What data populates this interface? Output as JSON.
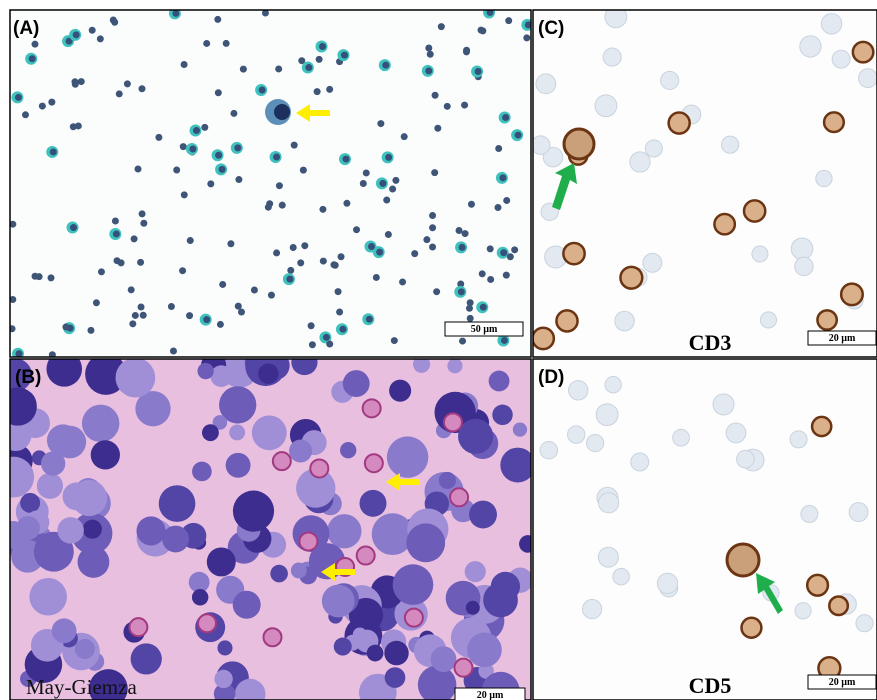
{
  "panels": [
    {
      "label": "(A)",
      "scale_bar": "50 µm"
    },
    {
      "label": "(B)",
      "scale_bar": "20 µm",
      "annotation": "May-Giemza"
    },
    {
      "label": "(C)",
      "scale_bar": "20 µm",
      "annotation": "CD3"
    },
    {
      "label": "(D)",
      "scale_bar": "20 µm",
      "annotation": "CD5"
    }
  ]
}
